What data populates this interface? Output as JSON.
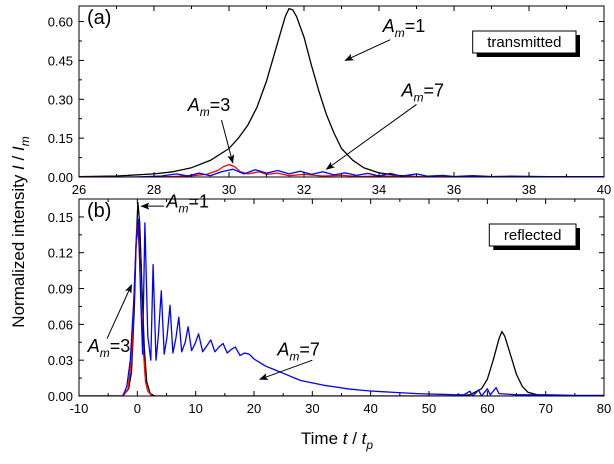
{
  "chart_data": [
    {
      "type": "line",
      "panel_label": "(a)",
      "box_label": "transmitted",
      "xlim": [
        26,
        40
      ],
      "ylim": [
        0,
        0.66
      ],
      "x_ticks": [
        "26",
        "28",
        "30",
        "32",
        "34",
        "36",
        "38",
        "40"
      ],
      "x_tick_values": [
        26,
        28,
        30,
        32,
        34,
        36,
        38,
        40
      ],
      "y_ticks": [
        "0.00",
        "0.15",
        "0.30",
        "0.45",
        "0.60"
      ],
      "y_tick_values": [
        0,
        0.15,
        0.3,
        0.45,
        0.6
      ],
      "annotations": [
        {
          "prefix": "A",
          "sub": "m",
          "suffix": "=1",
          "text_x": 34.1,
          "text_y": 0.56,
          "arrow_from": [
            34.3,
            0.53
          ],
          "arrow_to": [
            33.1,
            0.45
          ]
        },
        {
          "prefix": "A",
          "sub": "m",
          "suffix": "=3",
          "text_x": 28.9,
          "text_y": 0.255,
          "arrow_from": [
            29.8,
            0.22
          ],
          "arrow_to": [
            30.1,
            0.055
          ]
        },
        {
          "prefix": "A",
          "sub": "m",
          "suffix": "=7",
          "text_x": 34.6,
          "text_y": 0.31,
          "arrow_from": [
            35.0,
            0.28
          ],
          "arrow_to": [
            32.6,
            0.03
          ]
        }
      ],
      "series": [
        {
          "color": "#000000",
          "points": [
            [
              26.0,
              0.001
            ],
            [
              27.0,
              0.004
            ],
            [
              28.0,
              0.012
            ],
            [
              28.5,
              0.02
            ],
            [
              29.0,
              0.036
            ],
            [
              29.5,
              0.064
            ],
            [
              30.0,
              0.11
            ],
            [
              30.25,
              0.15
            ],
            [
              30.5,
              0.2
            ],
            [
              30.75,
              0.27
            ],
            [
              31.0,
              0.37
            ],
            [
              31.2,
              0.47
            ],
            [
              31.4,
              0.57
            ],
            [
              31.5,
              0.62
            ],
            [
              31.6,
              0.65
            ],
            [
              31.7,
              0.645
            ],
            [
              31.8,
              0.62
            ],
            [
              32.0,
              0.54
            ],
            [
              32.2,
              0.43
            ],
            [
              32.4,
              0.33
            ],
            [
              32.6,
              0.24
            ],
            [
              32.8,
              0.17
            ],
            [
              33.0,
              0.11
            ],
            [
              33.3,
              0.065
            ],
            [
              33.6,
              0.035
            ],
            [
              34.0,
              0.016
            ],
            [
              34.5,
              0.006
            ],
            [
              35.0,
              0.002
            ],
            [
              36.0,
              0.0005
            ],
            [
              40.0,
              0.0
            ]
          ]
        },
        {
          "color": "#ff0000",
          "points": [
            [
              26.0,
              0.0
            ],
            [
              28.0,
              0.0
            ],
            [
              28.5,
              0.002
            ],
            [
              29.0,
              0.005
            ],
            [
              29.4,
              0.01
            ],
            [
              29.7,
              0.025
            ],
            [
              29.85,
              0.04
            ],
            [
              30.0,
              0.048
            ],
            [
              30.15,
              0.04
            ],
            [
              30.3,
              0.02
            ],
            [
              30.5,
              0.012
            ],
            [
              30.8,
              0.02
            ],
            [
              31.0,
              0.01
            ],
            [
              31.3,
              0.015
            ],
            [
              31.6,
              0.005
            ],
            [
              32.0,
              0.01
            ],
            [
              32.5,
              0.004
            ],
            [
              33.0,
              0.006
            ],
            [
              33.5,
              0.002
            ],
            [
              34.0,
              0.004
            ],
            [
              35.0,
              0.002
            ],
            [
              36.0,
              0.001
            ],
            [
              37.0,
              0.001
            ],
            [
              38.0,
              0.0
            ],
            [
              40.0,
              0.0
            ]
          ]
        },
        {
          "color": "#0000ff",
          "points": [
            [
              26.0,
              0.0
            ],
            [
              27.5,
              0.0
            ],
            [
              28.2,
              0.004
            ],
            [
              28.6,
              0.012
            ],
            [
              28.9,
              0.004
            ],
            [
              29.2,
              0.015
            ],
            [
              29.5,
              0.005
            ],
            [
              29.8,
              0.02
            ],
            [
              30.1,
              0.03
            ],
            [
              30.4,
              0.012
            ],
            [
              30.7,
              0.028
            ],
            [
              31.0,
              0.015
            ],
            [
              31.3,
              0.025
            ],
            [
              31.6,
              0.012
            ],
            [
              31.9,
              0.022
            ],
            [
              32.2,
              0.01
            ],
            [
              32.5,
              0.02
            ],
            [
              32.8,
              0.008
            ],
            [
              33.1,
              0.016
            ],
            [
              33.4,
              0.006
            ],
            [
              33.7,
              0.014
            ],
            [
              34.0,
              0.004
            ],
            [
              34.3,
              0.014
            ],
            [
              34.6,
              0.003
            ],
            [
              35.0,
              0.012
            ],
            [
              35.3,
              0.003
            ],
            [
              35.7,
              0.006
            ],
            [
              36.0,
              0.002
            ],
            [
              36.5,
              0.005
            ],
            [
              37.0,
              0.002
            ],
            [
              37.5,
              0.003
            ],
            [
              38.5,
              0.001
            ],
            [
              40.0,
              0.001
            ]
          ]
        }
      ]
    },
    {
      "type": "line",
      "panel_label": "(b)",
      "box_label": "reflected",
      "xlim": [
        -10,
        80
      ],
      "ylim": [
        0,
        0.165
      ],
      "x_ticks": [
        "-10",
        "0",
        "10",
        "20",
        "30",
        "40",
        "50",
        "60",
        "70",
        "80"
      ],
      "x_tick_values": [
        -10,
        0,
        10,
        20,
        30,
        40,
        50,
        60,
        70,
        80
      ],
      "y_ticks": [
        "0.00",
        "0.03",
        "0.06",
        "0.09",
        "0.12",
        "0.15"
      ],
      "y_tick_values": [
        0,
        0.03,
        0.06,
        0.09,
        0.12,
        0.15
      ],
      "annotations": [
        {
          "prefix": "A",
          "sub": "m",
          "suffix": "=1",
          "text_x": 5.0,
          "text_y": 0.158,
          "arrow_from": [
            4.6,
            0.159
          ],
          "arrow_to": [
            0.7,
            0.159
          ]
        },
        {
          "prefix": "A",
          "sub": "m",
          "suffix": "=3",
          "text_x": -8.5,
          "text_y": 0.037,
          "arrow_from": [
            -5.2,
            0.048
          ],
          "arrow_to": [
            -1.0,
            0.093
          ]
        },
        {
          "prefix": "A",
          "sub": "m",
          "suffix": "=7",
          "text_x": 24.0,
          "text_y": 0.034,
          "arrow_from": [
            30.0,
            0.03
          ],
          "arrow_to": [
            21.0,
            0.014
          ]
        }
      ],
      "series": [
        {
          "color": "#000000",
          "points": [
            [
              -10,
              0
            ],
            [
              -2.5,
              0
            ],
            [
              -1.5,
              0.006
            ],
            [
              -1.0,
              0.02
            ],
            [
              -0.5,
              0.075
            ],
            [
              -0.2,
              0.13
            ],
            [
              0.1,
              0.162
            ],
            [
              0.4,
              0.145
            ],
            [
              0.8,
              0.09
            ],
            [
              1.2,
              0.04
            ],
            [
              1.6,
              0.012
            ],
            [
              2.2,
              0.002
            ],
            [
              3,
              0
            ],
            [
              55,
              0
            ],
            [
              57,
              0.001
            ],
            [
              59,
              0.006
            ],
            [
              60,
              0.014
            ],
            [
              61,
              0.03
            ],
            [
              62,
              0.048
            ],
            [
              62.5,
              0.054
            ],
            [
              63,
              0.05
            ],
            [
              64,
              0.034
            ],
            [
              65,
              0.018
            ],
            [
              66,
              0.008
            ],
            [
              67,
              0.003
            ],
            [
              69,
              0.0005
            ],
            [
              71,
              0
            ],
            [
              80,
              0
            ]
          ]
        },
        {
          "color": "#ff0000",
          "points": [
            [
              -10,
              0
            ],
            [
              -2.5,
              0
            ],
            [
              -1.6,
              0.006
            ],
            [
              -1.0,
              0.03
            ],
            [
              -0.5,
              0.09
            ],
            [
              -0.2,
              0.13
            ],
            [
              0.0,
              0.143
            ],
            [
              0.3,
              0.125
            ],
            [
              0.7,
              0.07
            ],
            [
              1.0,
              0.04
            ],
            [
              1.4,
              0.012
            ],
            [
              1.8,
              0.004
            ],
            [
              2.5,
              0
            ],
            [
              80,
              0
            ]
          ]
        },
        {
          "color": "#0000ff",
          "points": [
            [
              -10,
              0
            ],
            [
              -2.5,
              0
            ],
            [
              -1.8,
              0.008
            ],
            [
              -1.2,
              0.03
            ],
            [
              -0.6,
              0.08
            ],
            [
              -0.2,
              0.13
            ],
            [
              0.2,
              0.148
            ],
            [
              0.6,
              0.08
            ],
            [
              0.9,
              0.035
            ],
            [
              1.3,
              0.145
            ],
            [
              1.8,
              0.05
            ],
            [
              2.3,
              0.03
            ],
            [
              2.7,
              0.11
            ],
            [
              3.2,
              0.03
            ],
            [
              3.6,
              0.05
            ],
            [
              4.1,
              0.088
            ],
            [
              4.6,
              0.035
            ],
            [
              5.1,
              0.05
            ],
            [
              5.6,
              0.076
            ],
            [
              6.1,
              0.036
            ],
            [
              6.6,
              0.048
            ],
            [
              7.1,
              0.066
            ],
            [
              7.6,
              0.037
            ],
            [
              8.2,
              0.045
            ],
            [
              8.7,
              0.058
            ],
            [
              9.3,
              0.038
            ],
            [
              9.9,
              0.044
            ],
            [
              10.5,
              0.052
            ],
            [
              11.2,
              0.037
            ],
            [
              11.9,
              0.042
            ],
            [
              12.6,
              0.047
            ],
            [
              13.3,
              0.037
            ],
            [
              14,
              0.041
            ],
            [
              14.7,
              0.044
            ],
            [
              15.4,
              0.036
            ],
            [
              16.1,
              0.039
            ],
            [
              16.8,
              0.041
            ],
            [
              17.6,
              0.034
            ],
            [
              18.4,
              0.036
            ],
            [
              19.2,
              0.035
            ],
            [
              20,
              0.031
            ],
            [
              21,
              0.028
            ],
            [
              22,
              0.025
            ],
            [
              23,
              0.023
            ],
            [
              24,
              0.021
            ],
            [
              25,
              0.019
            ],
            [
              26,
              0.017
            ],
            [
              27,
              0.015
            ],
            [
              28,
              0.013
            ],
            [
              30,
              0.011
            ],
            [
              32,
              0.009
            ],
            [
              34,
              0.0075
            ],
            [
              36,
              0.006
            ],
            [
              38,
              0.005
            ],
            [
              40,
              0.0042
            ],
            [
              42,
              0.0036
            ],
            [
              44,
              0.003
            ],
            [
              46,
              0.0025
            ],
            [
              48,
              0.002
            ],
            [
              50,
              0.0017
            ],
            [
              52,
              0.0014
            ],
            [
              54,
              0.0011
            ],
            [
              56,
              0.001
            ],
            [
              57,
              0.004
            ],
            [
              57.5,
              0.0
            ],
            [
              58.5,
              0.005
            ],
            [
              59,
              0.0
            ],
            [
              60,
              0.006
            ],
            [
              60.5,
              0.001
            ],
            [
              61.5,
              0.007
            ],
            [
              62,
              0.002
            ],
            [
              65,
              0.001
            ],
            [
              70,
              0.001
            ],
            [
              75,
              0.0005
            ],
            [
              80,
              0.0005
            ]
          ]
        }
      ]
    }
  ],
  "x_axis_title": {
    "prefix": "Time ",
    "var": "t",
    "slash": " / ",
    "var2": "t",
    "sub": "p"
  },
  "y_axis_title": {
    "prefix": "Normalized intensity ",
    "var": "I",
    "slash": " / ",
    "var2": "I",
    "sub": "m"
  }
}
